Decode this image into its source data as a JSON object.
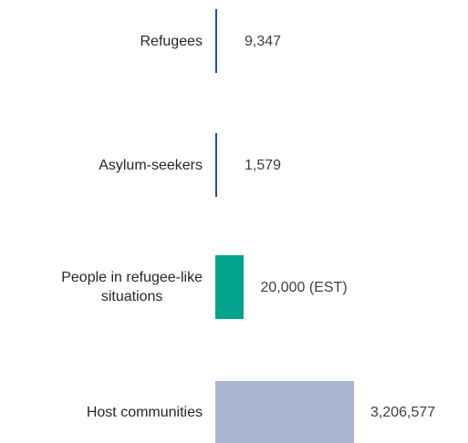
{
  "chart_data": {
    "type": "bar",
    "orientation": "horizontal",
    "categories": [
      "Refugees",
      "Asylum-seekers",
      "People in refugee-like\nsituations",
      "Host communities"
    ],
    "values": [
      9347,
      1579,
      20000,
      3206577
    ],
    "value_labels": [
      "9,347",
      "1,579",
      "20,000 (EST)",
      "3,206,577"
    ],
    "bar_colors": [
      "#1f4e9c",
      "#1f4e9c",
      "#00a38b",
      "#a9b4cf"
    ],
    "scale": "logarithmic",
    "title": "",
    "xlabel": "",
    "ylabel": "",
    "grid": false,
    "legend": "none"
  }
}
